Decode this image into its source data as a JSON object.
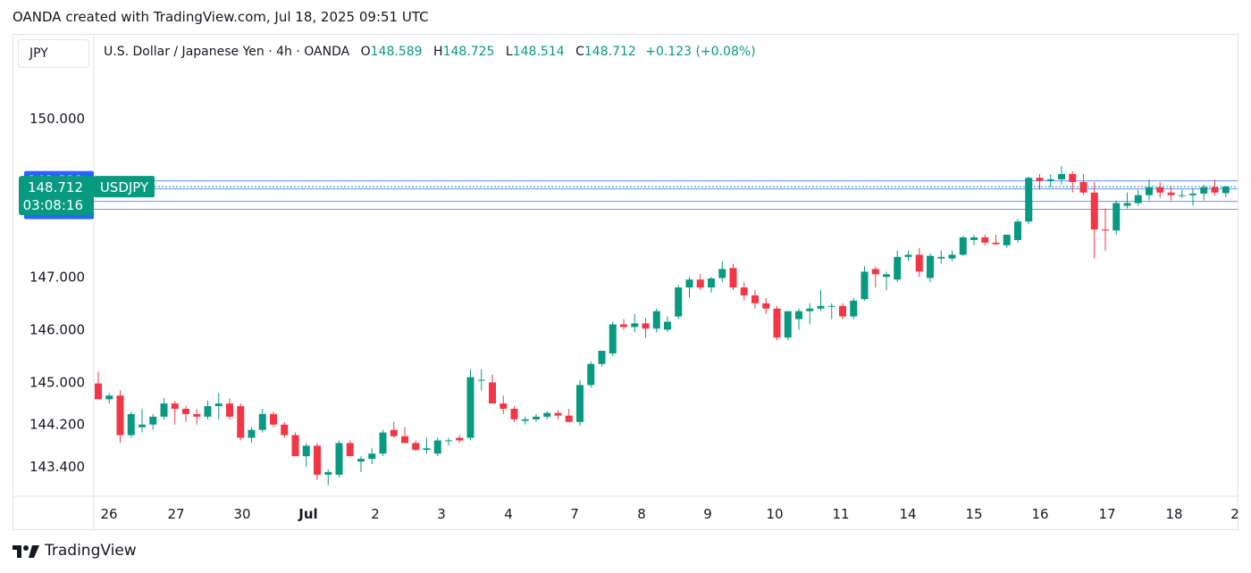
{
  "header": {
    "text": "OANDA created with TradingView.com, Jul 18, 2025 09:51 UTC"
  },
  "scale_tab": "JPY",
  "legend": {
    "title": "U.S. Dollar / Japanese Yen · 4h · OANDA",
    "o_label": "O",
    "o": "148.589",
    "h_label": "H",
    "h": "148.725",
    "l_label": "L",
    "l": "148.514",
    "c_label": "C",
    "c": "148.712",
    "change": "+0.123 (+0.08%)"
  },
  "footer": {
    "brand": "TradingView"
  },
  "colors": {
    "up": "#089981",
    "down": "#f23645",
    "blue": "#2962ff",
    "grid": "#e0e3eb"
  },
  "chart_data": {
    "type": "candlestick",
    "symbol": "USDJPY",
    "timeframe": "4h",
    "ylim": [
      142.8,
      151.0
    ],
    "y_ticks": [
      "143.400",
      "144.200",
      "145.000",
      "146.000",
      "147.000",
      "150.000"
    ],
    "x_ticks": [
      "26",
      "27",
      "30",
      "Jul",
      "2",
      "3",
      "4",
      "7",
      "8",
      "9",
      "10",
      "11",
      "14",
      "15",
      "16",
      "17",
      "18",
      "2"
    ],
    "current_price": {
      "value": "148.712",
      "countdown": "03:08:16",
      "label": "USDJPY"
    },
    "price_markers": [
      "148.821",
      "148.670",
      "148.433",
      "148.282"
    ],
    "candles": [
      [
        144.98,
        145.2,
        144.7,
        144.68
      ],
      [
        144.68,
        144.8,
        144.6,
        144.75
      ],
      [
        144.75,
        144.85,
        143.85,
        144.0
      ],
      [
        144.0,
        144.45,
        143.95,
        144.4
      ],
      [
        144.15,
        144.5,
        144.05,
        144.2
      ],
      [
        144.2,
        144.4,
        144.1,
        144.35
      ],
      [
        144.35,
        144.7,
        144.3,
        144.6
      ],
      [
        144.6,
        144.65,
        144.2,
        144.5
      ],
      [
        144.5,
        144.55,
        144.25,
        144.4
      ],
      [
        144.4,
        144.5,
        144.2,
        144.35
      ],
      [
        144.35,
        144.65,
        144.3,
        144.55
      ],
      [
        144.55,
        144.8,
        144.3,
        144.6
      ],
      [
        144.6,
        144.7,
        144.3,
        144.35
      ],
      [
        144.55,
        144.6,
        143.9,
        143.95
      ],
      [
        143.95,
        144.15,
        143.85,
        144.1
      ],
      [
        144.1,
        144.5,
        144.05,
        144.4
      ],
      [
        144.4,
        144.45,
        144.15,
        144.2
      ],
      [
        144.2,
        144.25,
        143.95,
        144.0
      ],
      [
        144.0,
        144.05,
        143.6,
        143.6
      ],
      [
        143.6,
        143.85,
        143.4,
        143.8
      ],
      [
        143.8,
        143.85,
        143.15,
        143.25
      ],
      [
        143.25,
        143.35,
        143.05,
        143.3
      ],
      [
        143.25,
        143.9,
        143.2,
        143.85
      ],
      [
        143.85,
        143.9,
        143.6,
        143.6
      ],
      [
        143.5,
        143.6,
        143.3,
        143.55
      ],
      [
        143.55,
        143.75,
        143.45,
        143.65
      ],
      [
        143.65,
        144.1,
        143.6,
        144.05
      ],
      [
        144.1,
        144.25,
        143.95,
        143.98
      ],
      [
        143.98,
        144.15,
        143.85,
        143.85
      ],
      [
        143.85,
        143.9,
        143.7,
        143.72
      ],
      [
        143.72,
        143.95,
        143.65,
        143.75
      ],
      [
        143.65,
        143.95,
        143.6,
        143.9
      ],
      [
        143.9,
        143.95,
        143.8,
        143.9
      ],
      [
        143.95,
        144.0,
        143.85,
        143.9
      ],
      [
        143.95,
        145.25,
        143.9,
        145.1
      ],
      [
        145.05,
        145.25,
        144.85,
        145.05
      ],
      [
        145.0,
        145.15,
        144.6,
        144.6
      ],
      [
        144.6,
        144.75,
        144.4,
        144.5
      ],
      [
        144.5,
        144.55,
        144.25,
        144.3
      ],
      [
        144.27,
        144.35,
        144.2,
        144.3
      ],
      [
        144.3,
        144.4,
        144.25,
        144.35
      ],
      [
        144.35,
        144.45,
        144.3,
        144.42
      ],
      [
        144.42,
        144.47,
        144.3,
        144.37
      ],
      [
        144.37,
        144.5,
        144.25,
        144.25
      ],
      [
        144.25,
        145.05,
        144.18,
        144.95
      ],
      [
        144.95,
        145.4,
        144.9,
        145.35
      ],
      [
        145.35,
        145.6,
        145.3,
        145.6
      ],
      [
        145.55,
        146.15,
        145.5,
        146.1
      ],
      [
        146.1,
        146.2,
        146.0,
        146.05
      ],
      [
        146.05,
        146.3,
        145.95,
        146.12
      ],
      [
        146.12,
        146.22,
        145.85,
        146.02
      ],
      [
        146.02,
        146.4,
        145.95,
        146.35
      ],
      [
        146.0,
        146.25,
        145.95,
        146.15
      ],
      [
        146.25,
        146.85,
        146.2,
        146.8
      ],
      [
        146.8,
        147.0,
        146.6,
        146.95
      ],
      [
        146.95,
        147.05,
        146.75,
        146.8
      ],
      [
        146.8,
        147.0,
        146.7,
        146.97
      ],
      [
        146.98,
        147.3,
        146.9,
        147.15
      ],
      [
        147.17,
        147.25,
        146.75,
        146.8
      ],
      [
        146.8,
        146.9,
        146.55,
        146.65
      ],
      [
        146.65,
        146.75,
        146.4,
        146.5
      ],
      [
        146.5,
        146.6,
        146.3,
        146.4
      ],
      [
        146.4,
        146.45,
        145.8,
        145.85
      ],
      [
        145.85,
        146.3,
        145.8,
        146.35
      ],
      [
        146.2,
        146.4,
        146.0,
        146.35
      ],
      [
        146.35,
        146.5,
        146.1,
        146.4
      ],
      [
        146.4,
        146.75,
        146.35,
        146.45
      ],
      [
        146.45,
        146.5,
        146.2,
        146.45
      ],
      [
        146.45,
        146.5,
        146.2,
        146.25
      ],
      [
        146.25,
        146.6,
        146.2,
        146.55
      ],
      [
        146.58,
        147.2,
        146.55,
        147.1
      ],
      [
        147.15,
        147.2,
        146.8,
        147.05
      ],
      [
        147.0,
        147.1,
        146.75,
        147.05
      ],
      [
        146.95,
        147.5,
        146.9,
        147.38
      ],
      [
        147.38,
        147.5,
        147.3,
        147.42
      ],
      [
        147.42,
        147.55,
        147.0,
        147.1
      ],
      [
        146.98,
        147.45,
        146.9,
        147.4
      ],
      [
        147.35,
        147.5,
        147.25,
        147.38
      ],
      [
        147.35,
        147.5,
        147.3,
        147.42
      ],
      [
        147.42,
        147.78,
        147.4,
        147.75
      ],
      [
        147.7,
        147.8,
        147.6,
        147.75
      ],
      [
        147.75,
        147.8,
        147.6,
        147.65
      ],
      [
        147.65,
        147.8,
        147.6,
        147.62
      ],
      [
        147.6,
        147.8,
        147.55,
        147.8
      ],
      [
        147.7,
        148.1,
        147.65,
        148.05
      ],
      [
        148.05,
        148.9,
        148.0,
        148.88
      ],
      [
        148.88,
        148.95,
        148.65,
        148.82
      ],
      [
        148.82,
        148.95,
        148.7,
        148.85
      ],
      [
        148.85,
        149.1,
        148.75,
        148.95
      ],
      [
        148.95,
        149.0,
        148.6,
        148.8
      ],
      [
        148.8,
        148.95,
        148.55,
        148.6
      ],
      [
        148.6,
        148.8,
        147.35,
        147.9
      ],
      [
        147.9,
        148.3,
        147.5,
        147.88
      ],
      [
        147.88,
        148.45,
        147.8,
        148.4
      ],
      [
        148.35,
        148.6,
        148.3,
        148.4
      ],
      [
        148.4,
        148.65,
        148.35,
        148.55
      ],
      [
        148.55,
        148.85,
        148.45,
        148.7
      ],
      [
        148.7,
        148.8,
        148.5,
        148.6
      ],
      [
        148.6,
        148.72,
        148.45,
        148.55
      ],
      [
        148.55,
        148.65,
        148.5,
        148.55
      ],
      [
        148.55,
        148.68,
        148.35,
        148.58
      ],
      [
        148.58,
        148.75,
        148.45,
        148.7
      ],
      [
        148.7,
        148.85,
        148.55,
        148.6
      ],
      [
        148.589,
        148.725,
        148.514,
        148.712
      ]
    ]
  }
}
